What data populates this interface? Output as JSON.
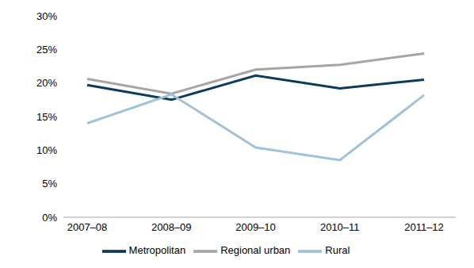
{
  "chart_data": {
    "type": "line",
    "categories": [
      "2007–08",
      "2008–09",
      "2009–10",
      "2010–11",
      "2011–12"
    ],
    "series": [
      {
        "name": "Metropolitan",
        "color": "#0b3c5d",
        "values": [
          19.7,
          17.5,
          21.1,
          19.2,
          20.5
        ]
      },
      {
        "name": "Regional urban",
        "color": "#a6a6a6",
        "values": [
          20.6,
          18.4,
          22.0,
          22.7,
          24.4
        ]
      },
      {
        "name": "Rural",
        "color": "#9ec3dd",
        "values": [
          14.0,
          18.3,
          10.4,
          8.5,
          18.2
        ]
      }
    ],
    "ylim": [
      0,
      30
    ],
    "yticks": [
      {
        "value": 0,
        "label": "0%"
      },
      {
        "value": 5,
        "label": "5%"
      },
      {
        "value": 10,
        "label": "10%"
      },
      {
        "value": 15,
        "label": "15%"
      },
      {
        "value": 20,
        "label": "20%"
      },
      {
        "value": 25,
        "label": "25%"
      },
      {
        "value": 30,
        "label": "30%"
      }
    ],
    "grid": false,
    "legend": "bottom"
  }
}
